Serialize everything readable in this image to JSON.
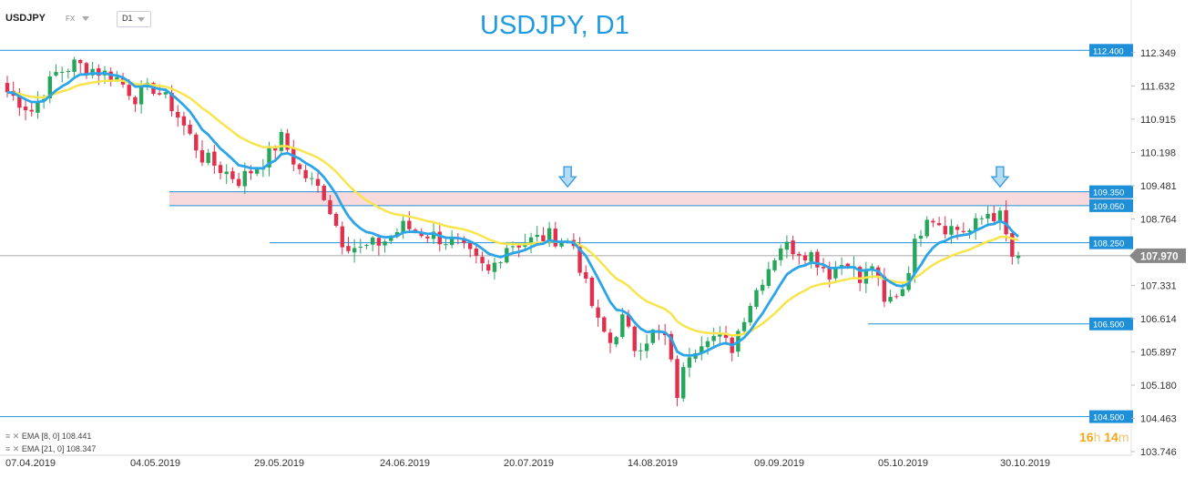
{
  "header": {
    "symbol": "USDJPY",
    "market": "FX",
    "timeframe": "D1",
    "title": "USDJPY, D1"
  },
  "legend": [
    {
      "label": "EMA [8, 0] 108.441",
      "color": "#2ba5e8"
    },
    {
      "label": "EMA [21, 0] 108.347",
      "color": "#f8e44b"
    }
  ],
  "countdown": {
    "hours": "16",
    "h_unit": "h",
    "minutes": "14",
    "m_unit": "m"
  },
  "chart_data": {
    "type": "candlestick",
    "x_labels": [
      "07.04.2019",
      "04.05.2019",
      "29.05.2019",
      "24.06.2019",
      "20.07.2019",
      "14.08.2019",
      "09.09.2019",
      "05.10.2019",
      "30.10.2019"
    ],
    "y_ticks": [
      "112.349",
      "111.632",
      "110.915",
      "110.198",
      "109.481",
      "108.764",
      "107.331",
      "106.614",
      "105.897",
      "105.180",
      "104.463",
      "103.746"
    ],
    "ylim": [
      103.746,
      112.7
    ],
    "last_price": "107.970",
    "levels": [
      {
        "label": "112.400",
        "value": 112.4
      },
      {
        "label": "109.350",
        "value": 109.35
      },
      {
        "label": "109.050",
        "value": 109.05
      },
      {
        "label": "108.250",
        "value": 108.25
      },
      {
        "label": "106.500",
        "value": 106.5
      },
      {
        "label": "104.500",
        "value": 104.5
      }
    ],
    "zone": [
      109.05,
      109.35
    ],
    "arrow_markers": [
      {
        "bar": 92,
        "value": 109.3
      },
      {
        "bar": 163,
        "value": 109.3
      }
    ],
    "colors": {
      "up": "#26a65b",
      "down": "#e0304e",
      "level": "#1f90d8",
      "zone": "#f8d3d6",
      "ema_fast": "#2ba5e8",
      "ema_slow": "#f8e44b"
    },
    "path_points": [
      [
        0,
        111.5
      ],
      [
        4,
        111.1
      ],
      [
        8,
        111.9
      ],
      [
        11,
        112.1
      ],
      [
        14,
        112.0
      ],
      [
        18,
        111.8
      ],
      [
        21,
        111.4
      ],
      [
        24,
        111.6
      ],
      [
        27,
        111.2
      ],
      [
        32,
        110.1
      ],
      [
        38,
        109.6
      ],
      [
        42,
        110.0
      ],
      [
        45,
        110.5
      ],
      [
        48,
        109.8
      ],
      [
        52,
        109.3
      ],
      [
        55,
        108.3
      ],
      [
        58,
        108.1
      ],
      [
        62,
        108.3
      ],
      [
        65,
        108.6
      ],
      [
        70,
        108.4
      ],
      [
        74,
        108.2
      ],
      [
        79,
        107.6
      ],
      [
        82,
        108.2
      ],
      [
        86,
        108.3
      ],
      [
        89,
        108.4
      ],
      [
        93,
        108.2
      ],
      [
        95,
        107.3
      ],
      [
        97,
        106.5
      ],
      [
        99,
        106.1
      ],
      [
        101,
        106.6
      ],
      [
        103,
        106.0
      ],
      [
        106,
        106.3
      ],
      [
        108,
        106.2
      ],
      [
        110,
        105.0
      ],
      [
        112,
        105.9
      ],
      [
        115,
        106.3
      ],
      [
        119,
        106.0
      ],
      [
        121,
        106.7
      ],
      [
        124,
        107.5
      ],
      [
        127,
        108.2
      ],
      [
        130,
        108.1
      ],
      [
        132,
        108.0
      ],
      [
        135,
        107.6
      ],
      [
        138,
        107.9
      ],
      [
        140,
        107.4
      ],
      [
        142,
        107.8
      ],
      [
        144,
        106.9
      ],
      [
        147,
        107.3
      ],
      [
        149,
        108.2
      ],
      [
        151,
        108.9
      ],
      [
        154,
        108.6
      ],
      [
        158,
        108.5
      ],
      [
        161,
        108.9
      ],
      [
        163,
        108.8
      ],
      [
        165,
        107.95
      ]
    ]
  }
}
